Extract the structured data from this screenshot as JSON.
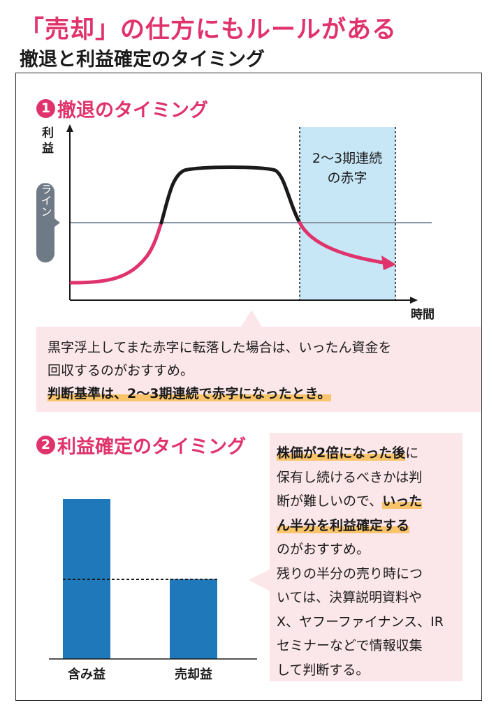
{
  "header": {
    "title": "「売却」の仕方にもルールがある",
    "subtitle": "撤退と利益確定のタイミング"
  },
  "section1": {
    "number": "1",
    "heading": "撤退のタイミング",
    "chart_labels": {
      "y_axis": "利益",
      "x_axis": "時間",
      "red_line_label": "赤字ライン",
      "zone_label_line1": "2〜3期連続",
      "zone_label_line2": "の赤字"
    },
    "bubble": {
      "line1": "黒字浮上してまた赤字に転落した場合は、いったん資金を",
      "line2": "回収するのがおすすめ。",
      "line3": "判断基準は、2〜3期連続で赤字になったとき。"
    }
  },
  "section2": {
    "number": "2",
    "heading": "利益確定のタイミング",
    "bubble": {
      "l1": "株価が2倍になった後",
      "l1_tail": "に",
      "l2": "保有し続けるべきかは判",
      "l3a": "断が難しいので、",
      "l3b": "いった",
      "l4": "ん半分を利益確定する",
      "l5": "のがおすすめ。",
      "l6": "残りの半分の売り時につ",
      "l7": "いては、決算説明資料や",
      "l8": "X、ヤフーファイナンス、IR",
      "l9": "セミナーなどで情報収集",
      "l10": "して判断する。"
    }
  },
  "chart_data": [
    {
      "type": "line",
      "title": "撤退のタイミング",
      "xlabel": "時間",
      "ylabel": "利益",
      "reference_line": {
        "label": "赤字ライン",
        "y": 0
      },
      "shaded_zone_label": "2〜3期連続の赤字",
      "series": [
        {
          "segment": "赤字",
          "color": "#e0336b",
          "x": [
            0,
            0.12,
            0.22,
            0.28
          ],
          "y": [
            -1.0,
            -0.82,
            -0.4,
            0
          ]
        },
        {
          "segment": "黒字",
          "color": "#1a1a1a",
          "x": [
            0.28,
            0.33,
            0.4,
            0.55,
            0.6,
            0.66
          ],
          "y": [
            0,
            0.85,
            1.0,
            1.0,
            0.85,
            0
          ]
        },
        {
          "segment": "赤字",
          "color": "#e0336b",
          "x": [
            0.66,
            0.72,
            0.82,
            0.92
          ],
          "y": [
            0,
            -0.35,
            -0.5,
            -0.55
          ]
        }
      ],
      "colors": {
        "line_red": "#e0336b",
        "line_black": "#1a1a1a",
        "zone": "#c7e6f6",
        "ref_line": "#8a98a6"
      }
    },
    {
      "type": "bar",
      "title": "利益確定のタイミング",
      "categories": [
        "含み益",
        "売却益"
      ],
      "values": [
        1.0,
        0.5
      ],
      "reference_line": 0.5,
      "colors": {
        "bar": "#1e78b9"
      }
    }
  ]
}
